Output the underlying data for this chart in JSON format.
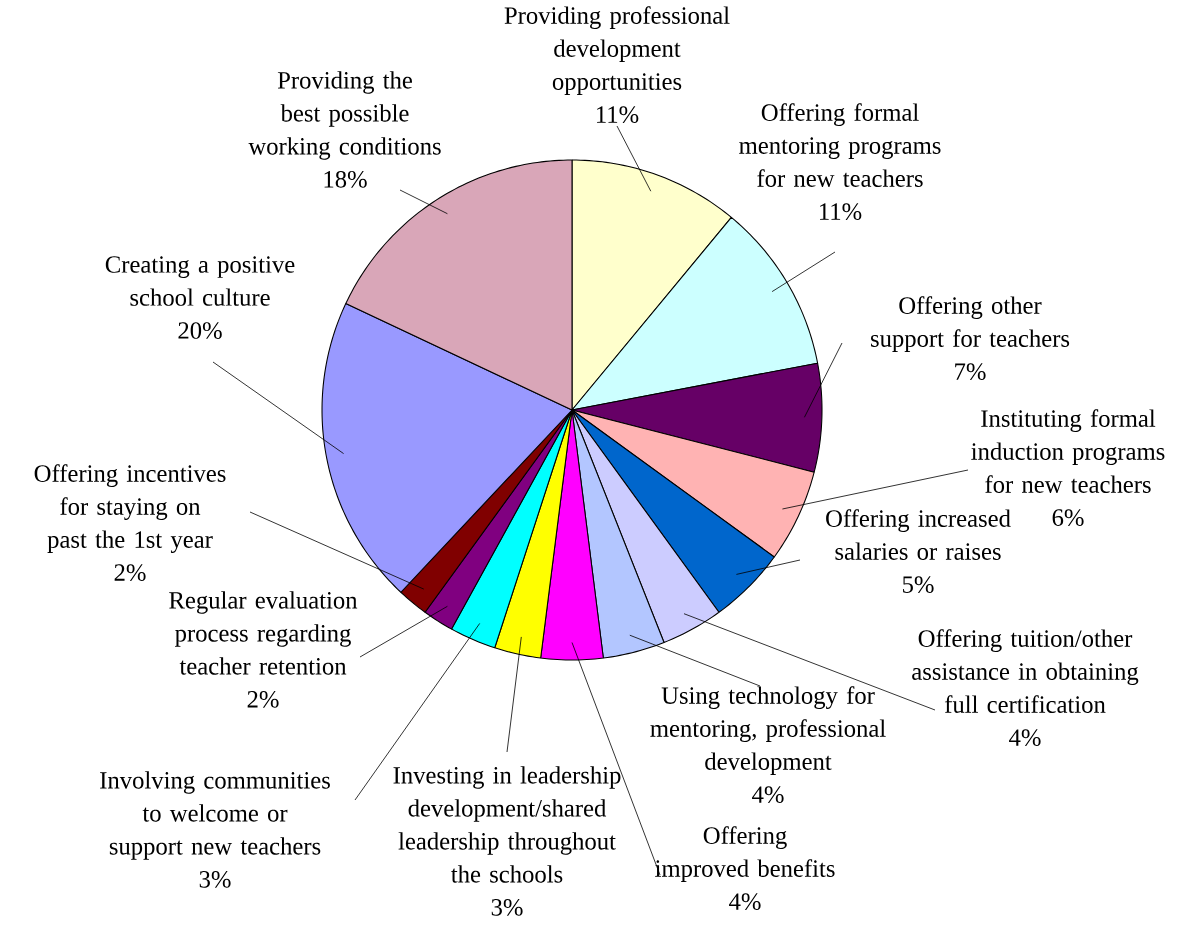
{
  "chart_data": {
    "type": "pie",
    "categories": [
      "Providing professional development opportunities",
      "Offering formal mentoring programs for new teachers",
      "Offering other support for teachers",
      "Instituting formal induction programs for new teachers",
      "Offering increased salaries or raises",
      "Offering tuition/other assistance in obtaining full certification",
      "Using technology for mentoring, professional development",
      "Offering improved benefits",
      "Investing in leadership development/shared leadership throughout the schools",
      "Involving communities to welcome or support new teachers",
      "Regular evaluation process regarding teacher retention",
      "Offering incentives for staying on past the 1st year",
      "Creating a positive school culture",
      "Providing the best possible working conditions"
    ],
    "values": [
      11,
      11,
      7,
      6,
      5,
      4,
      4,
      4,
      3,
      3,
      2,
      2,
      20,
      18
    ],
    "value_labels": [
      "11%",
      "11%",
      "7%",
      "6%",
      "5%",
      "4%",
      "4%",
      "4%",
      "3%",
      "3%",
      "2%",
      "2%",
      "20%",
      "18%"
    ],
    "colors": [
      "#ffffcc",
      "#ccffff",
      "#660066",
      "#ffb3b3",
      "#0066cc",
      "#ccccff",
      "#b3c6ff",
      "#ff00ff",
      "#ffff00",
      "#00ffff",
      "#800080",
      "#800000",
      "#9999ff",
      "#d9a6b8"
    ]
  }
}
